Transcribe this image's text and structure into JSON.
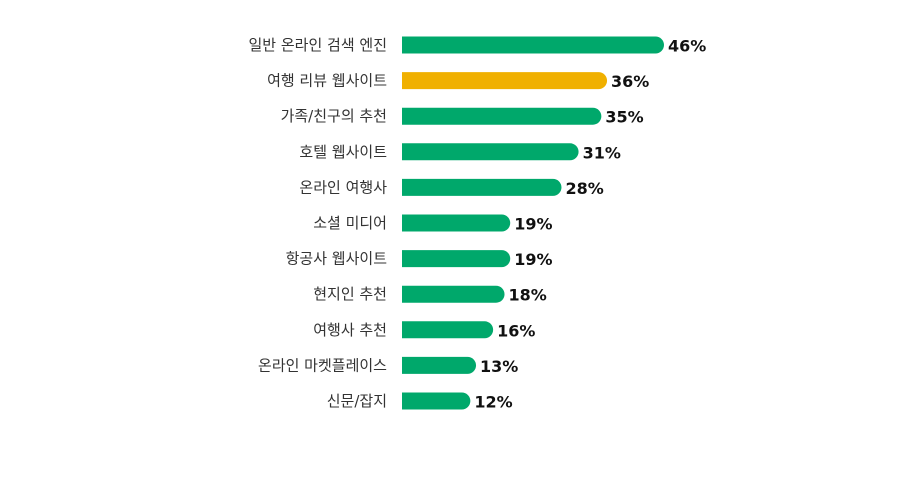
{
  "chart_data": {
    "type": "bar",
    "orientation": "horizontal",
    "categories": [
      "일반 온라인 검색 엔진",
      "여행 리뷰 웹사이트",
      "가족/친구의 추천",
      "호텔 웹사이트",
      "온라인 여행사",
      "소셜 미디어",
      "항공사 웹사이트",
      "현지인 추천",
      "여행사 추천",
      "온라인 마켓플레이스",
      "신문/잡지"
    ],
    "values": [
      46,
      36,
      35,
      31,
      28,
      19,
      19,
      18,
      16,
      13,
      12
    ],
    "value_labels": [
      "46%",
      "36%",
      "35%",
      "31%",
      "28%",
      "19%",
      "19%",
      "18%",
      "16%",
      "13%",
      "12%"
    ],
    "highlight_index": 1,
    "colors": {
      "default": "#00a86b",
      "highlight": "#f0b000"
    },
    "title": "",
    "xlabel": "",
    "ylabel": "",
    "grid": false,
    "legend": "none"
  }
}
